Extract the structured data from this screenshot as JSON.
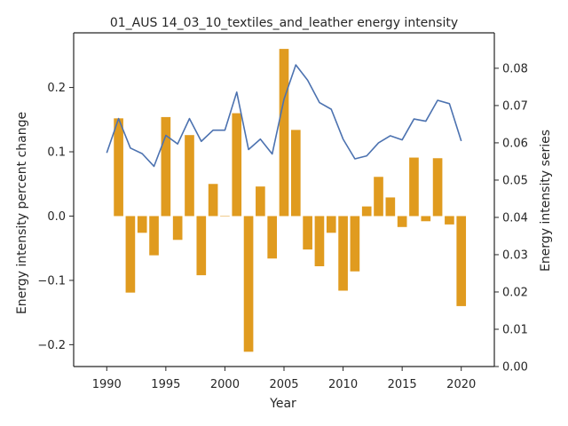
{
  "chart_data": {
    "type": "bar+line",
    "title": "01_AUS 14_03_10_textiles_and_leather energy intensity",
    "xlabel": "Year",
    "ylabel_left": "Energy intensity percent change",
    "ylabel_right": "Energy intensity series",
    "xlim": [
      1987.2,
      2022.8
    ],
    "ylim_left": [
      -0.234,
      0.285
    ],
    "ylim_right": [
      0.0,
      0.0895
    ],
    "x_ticks": [
      1990,
      1995,
      2000,
      2005,
      2010,
      2015,
      2020
    ],
    "y_ticks_left": [
      -0.2,
      -0.1,
      0.0,
      0.1,
      0.2
    ],
    "y_ticks_right": [
      0.0,
      0.01,
      0.02,
      0.03,
      0.04,
      0.05,
      0.06,
      0.07,
      0.08
    ],
    "grid": false,
    "bars": {
      "name": "percent change",
      "color": "#e09b1f",
      "x": [
        1991,
        1992,
        1993,
        1994,
        1995,
        1996,
        1997,
        1998,
        1999,
        2000,
        2001,
        2002,
        2003,
        2004,
        2005,
        2006,
        2007,
        2008,
        2009,
        2010,
        2011,
        2012,
        2013,
        2014,
        2015,
        2016,
        2017,
        2018,
        2019,
        2020
      ],
      "values": [
        0.152,
        -0.119,
        -0.026,
        -0.061,
        0.154,
        -0.037,
        0.126,
        -0.092,
        0.05,
        0.0,
        0.16,
        -0.211,
        0.046,
        -0.066,
        0.26,
        0.134,
        -0.052,
        -0.078,
        -0.026,
        -0.116,
        -0.086,
        0.015,
        0.061,
        0.029,
        -0.017,
        0.091,
        -0.008,
        0.09,
        -0.013,
        -0.14
      ]
    },
    "line": {
      "name": "series",
      "color": "#4c72b0",
      "x": [
        1990,
        1991,
        1992,
        1993,
        1994,
        1995,
        1996,
        1997,
        1998,
        1999,
        2000,
        2001,
        2002,
        2003,
        2004,
        2005,
        2006,
        2007,
        2008,
        2009,
        2010,
        2011,
        2012,
        2013,
        2014,
        2015,
        2016,
        2017,
        2018,
        2019,
        2020
      ],
      "values": [
        0.0573,
        0.0665,
        0.0586,
        0.0571,
        0.0537,
        0.062,
        0.0597,
        0.0665,
        0.0604,
        0.0634,
        0.0634,
        0.0736,
        0.0582,
        0.061,
        0.057,
        0.0717,
        0.0809,
        0.0768,
        0.0708,
        0.069,
        0.061,
        0.0557,
        0.0565,
        0.06,
        0.0619,
        0.0608,
        0.0664,
        0.0658,
        0.0714,
        0.0705,
        0.0605
      ]
    }
  }
}
